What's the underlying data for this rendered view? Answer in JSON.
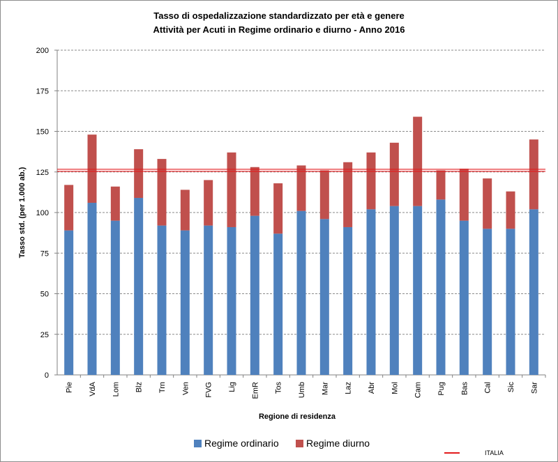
{
  "chart_data": {
    "type": "bar",
    "stacked": true,
    "title": "Tasso di ospedalizzazione  standardizzato  per età e genere",
    "subtitle": "Attività per Acuti in Regime ordinario e diurno - Anno 2016",
    "xlabel": "Regione di residenza",
    "ylabel": "Tasso std. (per 1.000 ab.)",
    "ylim": [
      0,
      200
    ],
    "yticks": [
      "0",
      "25",
      "50",
      "75",
      "100",
      "125",
      "150",
      "175",
      "200"
    ],
    "grid": true,
    "legend_position": "bottom",
    "categories": [
      "Pie",
      "VdA",
      "Lom",
      "Blz",
      "Trn",
      "Ven",
      "FVG",
      "Lig",
      "EmR",
      "Tos",
      "Umb",
      "Mar",
      "Laz",
      "Abr",
      "Mol",
      "Cam",
      "Pug",
      "Bas",
      "Cal",
      "Sic",
      "Sar"
    ],
    "series": [
      {
        "name": "Regime ordinario",
        "color": "#4f81bd",
        "values": [
          89,
          106,
          95,
          109,
          92,
          89,
          92,
          91,
          98,
          87,
          101,
          96,
          91,
          102,
          104,
          104,
          108,
          95,
          90,
          90,
          102
        ]
      },
      {
        "name": "Regime diurno",
        "color": "#c0504d",
        "values": [
          28,
          42,
          21,
          30,
          41,
          25,
          28,
          46,
          30,
          31,
          28,
          30,
          40,
          35,
          39,
          55,
          18,
          32,
          31,
          23,
          43
        ]
      }
    ],
    "reference_line": {
      "name": "ITALIA",
      "value": 126,
      "color": "#e31a1c"
    }
  }
}
